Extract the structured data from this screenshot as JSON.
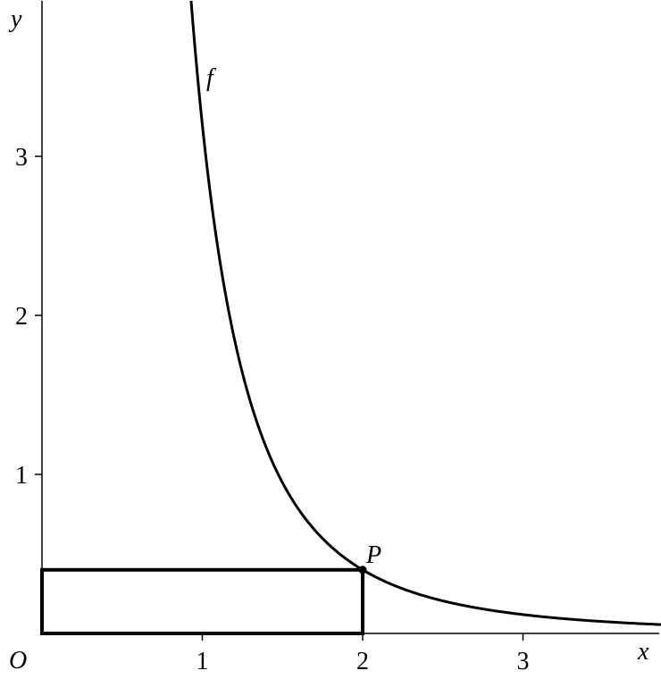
{
  "chart_data": {
    "type": "line",
    "title": "",
    "xlabel": "x",
    "ylabel": "y",
    "origin_label": "O",
    "xlim": [
      0,
      3.9
    ],
    "ylim": [
      0,
      3.95
    ],
    "x_ticks": [
      1,
      2,
      3
    ],
    "x_tick_labels": [
      "1",
      "2",
      "3"
    ],
    "y_ticks": [
      1,
      2,
      3
    ],
    "y_tick_labels": [
      "1",
      "2",
      "3"
    ],
    "grid": false,
    "series": [
      {
        "name": "f",
        "function": "3.2/x^3",
        "x_range": [
          0.93,
          3.9
        ],
        "color": "#000000"
      }
    ],
    "points": [
      {
        "label": "P",
        "x": 2,
        "y": 0.4
      }
    ],
    "rectangle": {
      "x": [
        0,
        2
      ],
      "y": [
        0,
        0.4
      ]
    }
  }
}
